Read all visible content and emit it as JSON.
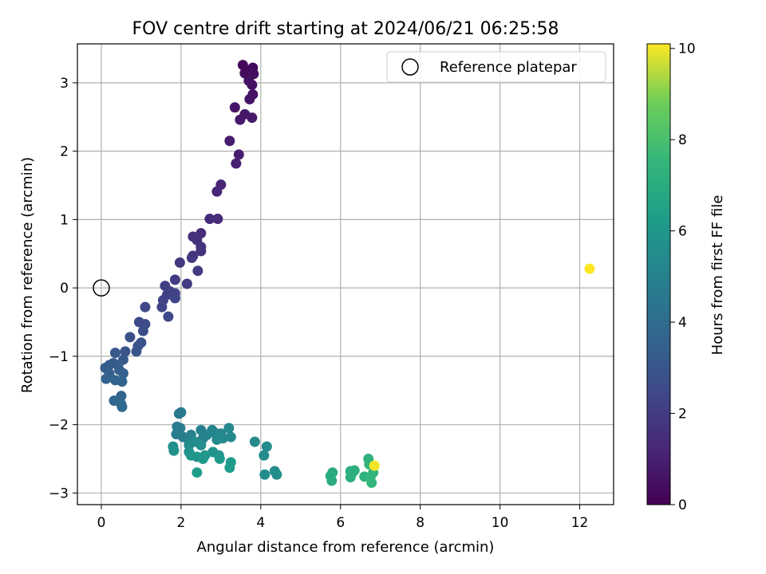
{
  "chart_data": {
    "type": "scatter",
    "title": "FOV centre drift starting at 2024/06/21 06:25:58",
    "xlabel": "Angular distance from reference (arcmin)",
    "ylabel": "Rotation from reference (arcmin)",
    "xlim": [
      -0.6,
      12.85
    ],
    "ylim": [
      -3.17,
      3.57
    ],
    "xticks": [
      0,
      2,
      4,
      6,
      8,
      10,
      12
    ],
    "yticks": [
      -3,
      -2,
      -1,
      0,
      1,
      2,
      3
    ],
    "xtick_labels": [
      "0",
      "2",
      "4",
      "6",
      "8",
      "10",
      "12"
    ],
    "ytick_labels": [
      "−3",
      "−2",
      "−1",
      "0",
      "1",
      "2",
      "3"
    ],
    "grid": true,
    "legend": {
      "position": "top-right",
      "entries": [
        "Reference platepar"
      ]
    },
    "reference_point": {
      "x": 0,
      "y": 0,
      "label": "Reference platepar"
    },
    "colorbar": {
      "label": "Hours from first FF file",
      "range": [
        0,
        10.1
      ],
      "ticks": [
        0,
        2,
        4,
        6,
        8,
        10
      ],
      "tick_labels": [
        "0",
        "2",
        "4",
        "6",
        "8",
        "10"
      ],
      "colormap": "viridis"
    },
    "points": [
      {
        "x": 3.55,
        "y": 3.26,
        "c": 0.2
      },
      {
        "x": 3.8,
        "y": 3.22,
        "c": 0.25
      },
      {
        "x": 3.7,
        "y": 3.18,
        "c": 0.3
      },
      {
        "x": 3.6,
        "y": 3.14,
        "c": 0.35
      },
      {
        "x": 3.82,
        "y": 3.13,
        "c": 0.4
      },
      {
        "x": 3.7,
        "y": 3.03,
        "c": 0.45
      },
      {
        "x": 3.78,
        "y": 2.97,
        "c": 0.5
      },
      {
        "x": 3.8,
        "y": 2.83,
        "c": 0.55
      },
      {
        "x": 3.72,
        "y": 2.76,
        "c": 0.6
      },
      {
        "x": 3.35,
        "y": 2.64,
        "c": 0.65
      },
      {
        "x": 3.6,
        "y": 2.54,
        "c": 0.7
      },
      {
        "x": 3.48,
        "y": 2.46,
        "c": 0.75
      },
      {
        "x": 3.78,
        "y": 2.49,
        "c": 0.8
      },
      {
        "x": 3.22,
        "y": 2.15,
        "c": 0.9
      },
      {
        "x": 3.45,
        "y": 1.95,
        "c": 0.95
      },
      {
        "x": 3.38,
        "y": 1.82,
        "c": 1.0
      },
      {
        "x": 3.0,
        "y": 1.51,
        "c": 1.15
      },
      {
        "x": 2.9,
        "y": 1.41,
        "c": 1.2
      },
      {
        "x": 2.72,
        "y": 1.01,
        "c": 1.35
      },
      {
        "x": 2.92,
        "y": 1.01,
        "c": 1.4
      },
      {
        "x": 2.5,
        "y": 0.8,
        "c": 1.5
      },
      {
        "x": 2.3,
        "y": 0.75,
        "c": 1.55
      },
      {
        "x": 2.4,
        "y": 0.7,
        "c": 1.6
      },
      {
        "x": 2.5,
        "y": 0.6,
        "c": 1.65
      },
      {
        "x": 2.5,
        "y": 0.54,
        "c": 1.7
      },
      {
        "x": 2.3,
        "y": 0.47,
        "c": 1.75
      },
      {
        "x": 2.27,
        "y": 0.44,
        "c": 1.8
      },
      {
        "x": 1.97,
        "y": 0.37,
        "c": 1.9
      },
      {
        "x": 2.42,
        "y": 0.25,
        "c": 1.95
      },
      {
        "x": 1.85,
        "y": 0.12,
        "c": 2.0
      },
      {
        "x": 2.15,
        "y": 0.06,
        "c": 2.05
      },
      {
        "x": 1.6,
        "y": 0.03,
        "c": 2.1
      },
      {
        "x": 1.72,
        "y": -0.05,
        "c": 2.15
      },
      {
        "x": 1.65,
        "y": -0.1,
        "c": 2.2
      },
      {
        "x": 1.85,
        "y": -0.08,
        "c": 2.25
      },
      {
        "x": 1.55,
        "y": -0.18,
        "c": 2.3
      },
      {
        "x": 1.85,
        "y": -0.15,
        "c": 2.35
      },
      {
        "x": 1.52,
        "y": -0.28,
        "c": 2.4
      },
      {
        "x": 1.1,
        "y": -0.28,
        "c": 2.45
      },
      {
        "x": 1.68,
        "y": -0.42,
        "c": 2.5
      },
      {
        "x": 0.95,
        "y": -0.5,
        "c": 2.55
      },
      {
        "x": 1.1,
        "y": -0.53,
        "c": 2.6
      },
      {
        "x": 1.05,
        "y": -0.63,
        "c": 2.7
      },
      {
        "x": 0.72,
        "y": -0.72,
        "c": 2.8
      },
      {
        "x": 1.0,
        "y": -0.8,
        "c": 2.85
      },
      {
        "x": 0.92,
        "y": -0.85,
        "c": 2.9
      },
      {
        "x": 0.6,
        "y": -0.93,
        "c": 3.0
      },
      {
        "x": 0.88,
        "y": -0.93,
        "c": 3.05
      },
      {
        "x": 0.35,
        "y": -0.95,
        "c": 3.1
      },
      {
        "x": 0.55,
        "y": -1.05,
        "c": 3.15
      },
      {
        "x": 0.3,
        "y": -1.1,
        "c": 3.2
      },
      {
        "x": 0.2,
        "y": -1.13,
        "c": 3.25
      },
      {
        "x": 0.1,
        "y": -1.17,
        "c": 3.3
      },
      {
        "x": 0.42,
        "y": -1.13,
        "c": 3.35
      },
      {
        "x": 0.45,
        "y": -1.2,
        "c": 3.4
      },
      {
        "x": 0.2,
        "y": -1.25,
        "c": 3.45
      },
      {
        "x": 0.55,
        "y": -1.25,
        "c": 3.5
      },
      {
        "x": 0.12,
        "y": -1.33,
        "c": 3.55
      },
      {
        "x": 0.35,
        "y": -1.35,
        "c": 3.6
      },
      {
        "x": 0.52,
        "y": -1.37,
        "c": 3.65
      },
      {
        "x": 0.5,
        "y": -1.58,
        "c": 3.7
      },
      {
        "x": 0.32,
        "y": -1.65,
        "c": 3.75
      },
      {
        "x": 0.5,
        "y": -1.7,
        "c": 3.8
      },
      {
        "x": 0.52,
        "y": -1.74,
        "c": 3.85
      },
      {
        "x": 1.95,
        "y": -1.84,
        "c": 4.6
      },
      {
        "x": 2.0,
        "y": -1.82,
        "c": 4.65
      },
      {
        "x": 1.9,
        "y": -2.03,
        "c": 4.7
      },
      {
        "x": 1.98,
        "y": -2.05,
        "c": 4.75
      },
      {
        "x": 1.88,
        "y": -2.14,
        "c": 4.8
      },
      {
        "x": 2.05,
        "y": -2.18,
        "c": 4.85
      },
      {
        "x": 2.15,
        "y": -2.2,
        "c": 4.9
      },
      {
        "x": 2.25,
        "y": -2.15,
        "c": 4.95
      },
      {
        "x": 2.5,
        "y": -2.08,
        "c": 5.0
      },
      {
        "x": 2.55,
        "y": -2.2,
        "c": 5.05
      },
      {
        "x": 2.65,
        "y": -2.15,
        "c": 5.1
      },
      {
        "x": 2.78,
        "y": -2.08,
        "c": 5.15
      },
      {
        "x": 2.85,
        "y": -2.12,
        "c": 5.2
      },
      {
        "x": 3.0,
        "y": -2.13,
        "c": 5.25
      },
      {
        "x": 3.2,
        "y": -2.05,
        "c": 5.3
      },
      {
        "x": 3.25,
        "y": -2.18,
        "c": 5.35
      },
      {
        "x": 3.05,
        "y": -2.2,
        "c": 5.4
      },
      {
        "x": 2.9,
        "y": -2.22,
        "c": 5.45
      },
      {
        "x": 2.35,
        "y": -2.25,
        "c": 5.5
      },
      {
        "x": 2.2,
        "y": -2.3,
        "c": 5.55
      },
      {
        "x": 2.5,
        "y": -2.3,
        "c": 5.6
      },
      {
        "x": 1.8,
        "y": -2.32,
        "c": 5.65
      },
      {
        "x": 1.82,
        "y": -2.38,
        "c": 5.7
      },
      {
        "x": 2.2,
        "y": -2.4,
        "c": 5.75
      },
      {
        "x": 2.8,
        "y": -2.4,
        "c": 5.8
      },
      {
        "x": 2.95,
        "y": -2.45,
        "c": 5.85
      },
      {
        "x": 2.25,
        "y": -2.45,
        "c": 5.9
      },
      {
        "x": 2.4,
        "y": -2.47,
        "c": 5.95
      },
      {
        "x": 2.6,
        "y": -2.45,
        "c": 6.0
      },
      {
        "x": 2.55,
        "y": -2.5,
        "c": 6.05
      },
      {
        "x": 2.97,
        "y": -2.5,
        "c": 6.1
      },
      {
        "x": 3.25,
        "y": -2.55,
        "c": 6.15
      },
      {
        "x": 3.22,
        "y": -2.63,
        "c": 6.2
      },
      {
        "x": 2.4,
        "y": -2.7,
        "c": 6.25
      },
      {
        "x": 3.85,
        "y": -2.25,
        "c": 5.4
      },
      {
        "x": 4.15,
        "y": -2.32,
        "c": 5.45
      },
      {
        "x": 4.08,
        "y": -2.45,
        "c": 5.5
      },
      {
        "x": 4.1,
        "y": -2.73,
        "c": 5.55
      },
      {
        "x": 4.35,
        "y": -2.68,
        "c": 5.6
      },
      {
        "x": 4.4,
        "y": -2.73,
        "c": 5.65
      },
      {
        "x": 5.8,
        "y": -2.7,
        "c": 6.9
      },
      {
        "x": 5.75,
        "y": -2.75,
        "c": 6.95
      },
      {
        "x": 5.78,
        "y": -2.82,
        "c": 7.0
      },
      {
        "x": 6.25,
        "y": -2.68,
        "c": 7.05
      },
      {
        "x": 6.35,
        "y": -2.67,
        "c": 7.1
      },
      {
        "x": 6.28,
        "y": -2.72,
        "c": 7.15
      },
      {
        "x": 6.25,
        "y": -2.77,
        "c": 7.2
      },
      {
        "x": 6.6,
        "y": -2.76,
        "c": 7.25
      },
      {
        "x": 6.7,
        "y": -2.5,
        "c": 7.3
      },
      {
        "x": 6.72,
        "y": -2.58,
        "c": 7.35
      },
      {
        "x": 6.82,
        "y": -2.7,
        "c": 7.4
      },
      {
        "x": 6.75,
        "y": -2.77,
        "c": 7.45
      },
      {
        "x": 6.78,
        "y": -2.85,
        "c": 7.5
      },
      {
        "x": 6.85,
        "y": -2.6,
        "c": 10.0
      },
      {
        "x": 12.25,
        "y": 0.28,
        "c": 10.1
      }
    ]
  }
}
